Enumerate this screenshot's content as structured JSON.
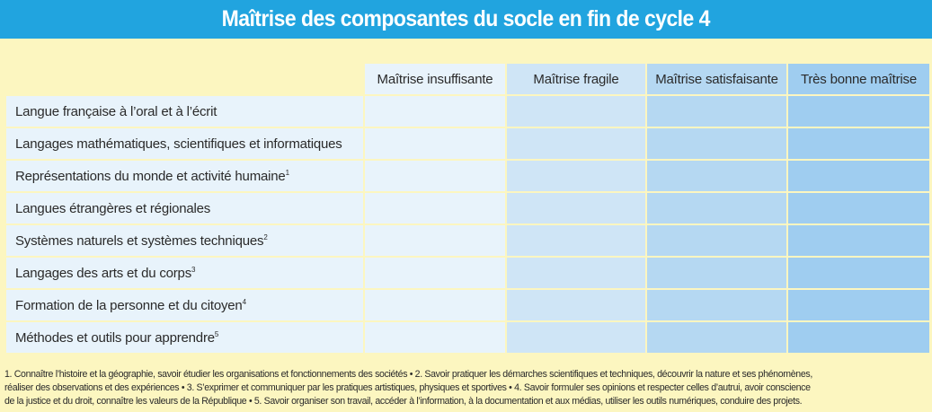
{
  "title": "Maîtrise des composantes du socle en fin de cycle 4",
  "table": {
    "columns": [
      "Maîtrise insuffisante",
      "Maîtrise fragile",
      "Maîtrise satisfaisante",
      "Très bonne maîtrise"
    ],
    "rows": [
      {
        "label": "Langue française à l’oral et à l’écrit",
        "note": ""
      },
      {
        "label": "Langages mathématiques, scientifiques et informatiques",
        "note": ""
      },
      {
        "label": "Représentations du monde et activité humaine",
        "note": "1"
      },
      {
        "label": "Langues étrangères et régionales",
        "note": ""
      },
      {
        "label": "Systèmes naturels et systèmes techniques",
        "note": "2"
      },
      {
        "label": "Langages des arts et du corps",
        "note": "3"
      },
      {
        "label": "Formation de la personne et du citoyen",
        "note": "4"
      },
      {
        "label": "Méthodes et outils pour apprendre",
        "note": "5"
      }
    ]
  },
  "footnotes": {
    "line1": "1. Connaître l’histoire et la géographie,  savoir étudier les organisations et fonctionnements des sociétés • 2. Savoir pratiquer les démarches scientifiques et techniques, découvrir la nature et ses phénomènes,",
    "line2": "réaliser des observations et des expériences • 3. S’exprimer et communiquer par les pratiques artistiques, physiques et sportives • 4. Savoir formuler ses opinions et respecter celles d’autrui, avoir conscience",
    "line3": "de la justice et du droit, connaître les valeurs de la République • 5. Savoir organiser son travail, accéder à l’information, à la documentation et aux médias, utiliser les outils numériques, conduire des projets."
  },
  "colors": {
    "title_bar": "#21a4df",
    "page_background": "#fcf6c0",
    "column_1": "#e8f3fb",
    "column_2": "#cfe5f6",
    "column_3": "#b5d8f2",
    "column_4": "#9fcdf0"
  }
}
